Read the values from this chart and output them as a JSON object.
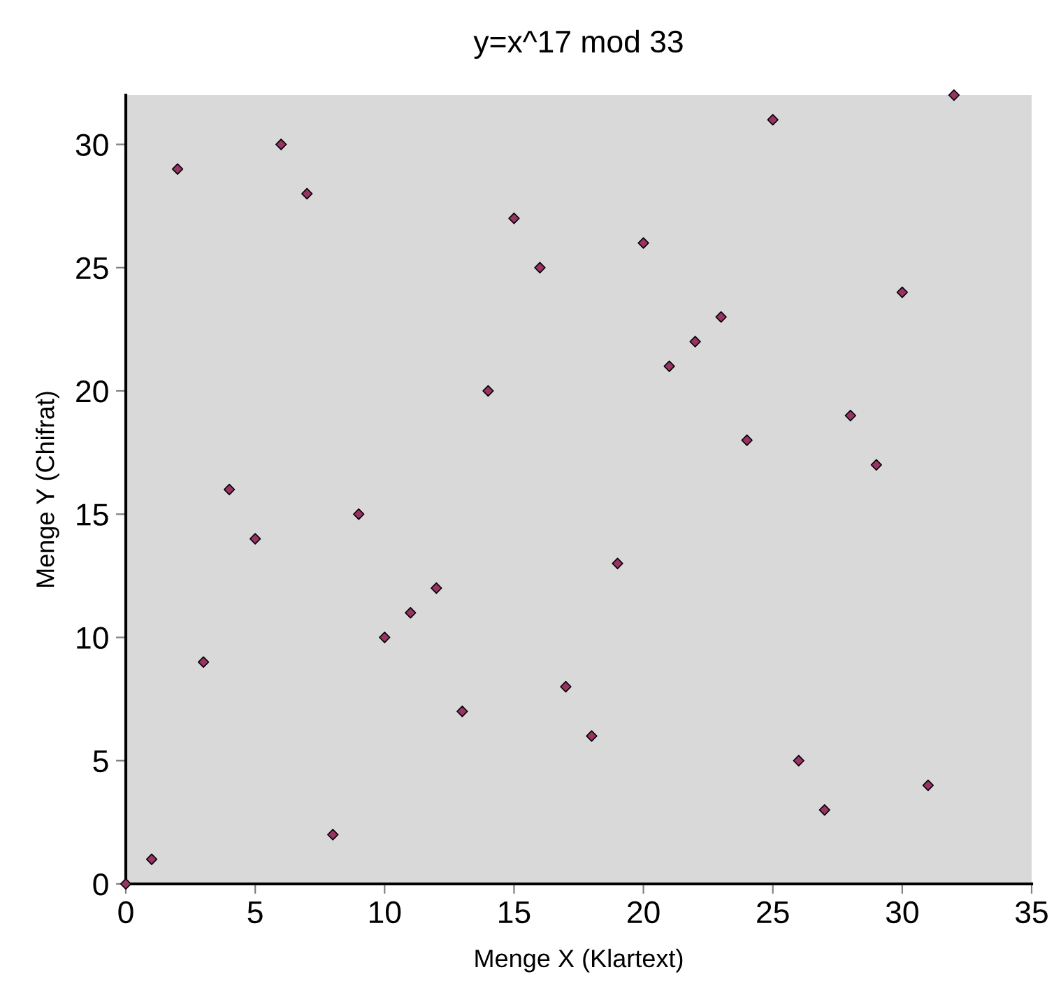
{
  "chart_data": {
    "type": "scatter",
    "title": "y=x^17 mod 33",
    "xlabel": "Menge X (Klartext)",
    "ylabel": "Menge Y (Chifrat)",
    "x": [
      0,
      1,
      2,
      3,
      4,
      5,
      6,
      7,
      8,
      9,
      10,
      11,
      12,
      13,
      14,
      15,
      16,
      17,
      18,
      19,
      20,
      21,
      22,
      23,
      24,
      25,
      26,
      27,
      28,
      29,
      30,
      31,
      32
    ],
    "series": [
      {
        "color": "#993366",
        "values": [
          0,
          1,
          29,
          9,
          16,
          14,
          30,
          28,
          2,
          15,
          10,
          11,
          12,
          7,
          20,
          27,
          25,
          8,
          6,
          13,
          26,
          21,
          22,
          23,
          18,
          31,
          5,
          3,
          19,
          17,
          24,
          4,
          32
        ]
      }
    ],
    "xlim": [
      0,
      35
    ],
    "ylim": [
      0,
      32
    ],
    "xticks": [
      0,
      5,
      10,
      15,
      20,
      25,
      30,
      35
    ],
    "yticks": [
      0,
      5,
      10,
      15,
      20,
      25,
      30
    ],
    "marker": "diamond",
    "grid": false,
    "legend": false
  }
}
